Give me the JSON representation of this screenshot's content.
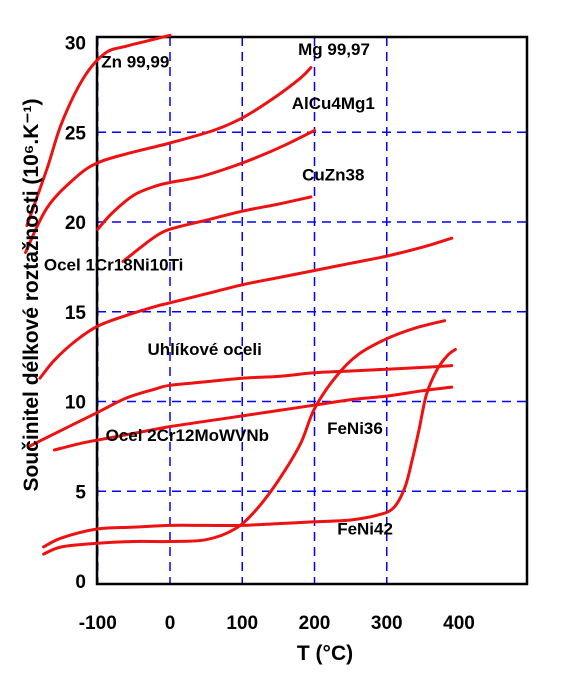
{
  "chart_data": {
    "type": "line",
    "xlabel": "T (°C)",
    "ylabel": "Součinitel délkové roztažnosti (10⁶.K⁻¹)",
    "xlim": [
      -200,
      400
    ],
    "ylim": [
      0,
      30
    ],
    "xticks": [
      -100,
      0,
      100,
      200,
      300,
      400
    ],
    "yticks": [
      0,
      5,
      10,
      15,
      20,
      25,
      30
    ],
    "grid": "dashed",
    "grid_color": "#0000ff",
    "line_color": "#ee1111",
    "series": [
      {
        "name": "Zn 99,99",
        "x": [
          -198,
          -170,
          -150,
          -120,
          -90,
          -60,
          -30,
          0
        ],
        "y": [
          19.8,
          23.0,
          25.5,
          28.0,
          29.4,
          29.8,
          30.1,
          30.4
        ]
      },
      {
        "name": "Mg 99,97",
        "x": [
          -200,
          -170,
          -130,
          -100,
          -60,
          0,
          60,
          100,
          140,
          180,
          195
        ],
        "y": [
          18.3,
          20.8,
          22.5,
          23.3,
          23.8,
          24.4,
          25.1,
          25.8,
          26.8,
          28.0,
          28.6
        ]
      },
      {
        "name": "AlCu4Mg1",
        "x": [
          -100,
          -80,
          -50,
          -20,
          0,
          40,
          80,
          120,
          160,
          200
        ],
        "y": [
          19.6,
          20.5,
          21.5,
          22.0,
          22.2,
          22.5,
          23.0,
          23.6,
          24.3,
          25.1
        ]
      },
      {
        "name": "CuZn38",
        "x": [
          -65,
          -40,
          -20,
          0,
          50,
          100,
          150,
          195
        ],
        "y": [
          17.8,
          18.6,
          19.2,
          19.6,
          20.1,
          20.6,
          21.0,
          21.4
        ]
      },
      {
        "name": "Ocel 1Cr18Ni10Ti",
        "x": [
          -180,
          -160,
          -130,
          -100,
          -60,
          -20,
          0,
          50,
          100,
          150,
          200,
          250,
          300,
          350,
          390
        ],
        "y": [
          11.3,
          12.3,
          13.4,
          14.2,
          14.8,
          15.3,
          15.5,
          16.0,
          16.5,
          16.9,
          17.3,
          17.7,
          18.1,
          18.6,
          19.1
        ]
      },
      {
        "name": "Uhlíkové oceli",
        "x": [
          -195,
          -150,
          -100,
          -60,
          -20,
          0,
          50,
          100,
          150,
          200,
          250,
          300,
          350,
          390
        ],
        "y": [
          7.5,
          8.4,
          9.4,
          10.2,
          10.7,
          10.9,
          11.1,
          11.3,
          11.4,
          11.6,
          11.7,
          11.8,
          11.9,
          12.0
        ]
      },
      {
        "name": "Ocel 2Cr12MoWVNb",
        "x": [
          -160,
          -120,
          -80,
          -40,
          0,
          50,
          100,
          150,
          200,
          250,
          300,
          350,
          390
        ],
        "y": [
          7.3,
          7.7,
          8.0,
          8.3,
          8.6,
          8.9,
          9.2,
          9.5,
          9.8,
          10.1,
          10.3,
          10.6,
          10.8
        ]
      },
      {
        "name": "FeNi36",
        "x": [
          -175,
          -150,
          -100,
          -50,
          0,
          50,
          90,
          120,
          150,
          180,
          200,
          230,
          260,
          300,
          340,
          380
        ],
        "y": [
          1.5,
          1.9,
          2.1,
          2.2,
          2.2,
          2.3,
          2.9,
          4.0,
          5.6,
          7.6,
          9.6,
          11.4,
          12.6,
          13.5,
          14.1,
          14.5
        ]
      },
      {
        "name": "FeNi42",
        "x": [
          -175,
          -150,
          -100,
          -50,
          0,
          50,
          100,
          150,
          200,
          250,
          290,
          310,
          325,
          335,
          345,
          355,
          370,
          385,
          395
        ],
        "y": [
          1.9,
          2.4,
          2.9,
          3.0,
          3.1,
          3.1,
          3.1,
          3.2,
          3.3,
          3.4,
          3.7,
          4.1,
          5.2,
          6.7,
          8.5,
          10.4,
          11.8,
          12.6,
          12.9
        ]
      }
    ],
    "annotations": [
      {
        "text": "Zn 99,99",
        "x": -48,
        "y": 28.6
      },
      {
        "text": "Mg 99,97",
        "x": 227,
        "y": 29.3
      },
      {
        "text": "AlCu4Mg1",
        "x": 226,
        "y": 26.3
      },
      {
        "text": "CuZn38",
        "x": 226,
        "y": 22.3
      },
      {
        "text": "Ocel 1Cr18Ni10Ti",
        "x": -78,
        "y": 17.3
      },
      {
        "text": "Uhlíkové oceli",
        "x": 48,
        "y": 12.6
      },
      {
        "text": "Ocel 2Cr12MoWVNb",
        "x": 24,
        "y": 7.8
      },
      {
        "text": "FeNi36",
        "x": 256,
        "y": 8.2
      },
      {
        "text": "FeNi42",
        "x": 270,
        "y": 2.6
      }
    ]
  }
}
